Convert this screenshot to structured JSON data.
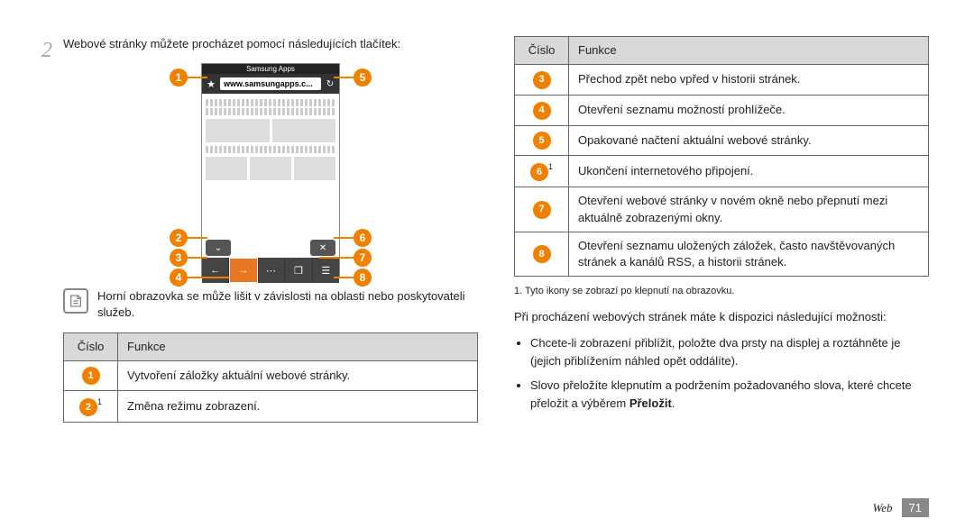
{
  "left": {
    "step_number": "2",
    "step_text": "Webové stránky můžete procházet pomocí následujících tlačítek:",
    "phone": {
      "title_bar": "Samsung Apps",
      "url": "www.samsungapps.c...",
      "markers_left": [
        "1",
        "2",
        "3",
        "4"
      ],
      "markers_right": [
        "5",
        "6",
        "7",
        "8"
      ]
    },
    "note": "Horní obrazovka se může lišit v závislosti na oblasti nebo poskytovateli služeb.",
    "table": {
      "headers": [
        "Číslo",
        "Funkce"
      ],
      "rows": [
        {
          "n": "1",
          "sup": "",
          "t": "Vytvoření záložky aktuální webové stránky."
        },
        {
          "n": "2",
          "sup": "1",
          "t": "Změna režimu zobrazení."
        }
      ]
    }
  },
  "right": {
    "table": {
      "headers": [
        "Číslo",
        "Funkce"
      ],
      "rows": [
        {
          "n": "3",
          "sup": "",
          "t": "Přechod zpět nebo vpřed v historii stránek."
        },
        {
          "n": "4",
          "sup": "",
          "t": "Otevření seznamu možností prohlížeče."
        },
        {
          "n": "5",
          "sup": "",
          "t": "Opakované načtení aktuální webové stránky."
        },
        {
          "n": "6",
          "sup": "1",
          "t": "Ukončení internetového připojení."
        },
        {
          "n": "7",
          "sup": "",
          "t": "Otevření webové stránky v novém okně nebo přepnutí mezi aktuálně zobrazenými okny."
        },
        {
          "n": "8",
          "sup": "",
          "t": "Otevření seznamu uložených záložek, často navštěvovaných stránek a kanálů RSS, a historii stránek."
        }
      ]
    },
    "footnote": "1. Tyto ikony se zobrazí po klepnutí na obrazovku.",
    "para": "Při procházení webových stránek máte k dispozici následující možnosti:",
    "bullets": [
      "Chcete-li zobrazení přiblížit, položte dva prsty na displej a roztáhněte je (jejich přiblížením náhled opět oddálíte).",
      "Slovo přeložíte klepnutím a podržením požadovaného slova, které chcete přeložit a výběrem <b>Přeložit</b>."
    ]
  },
  "footer": {
    "section": "Web",
    "page": "71"
  },
  "colors": {
    "accent": "#f08000",
    "header_bg": "#d9d9d9",
    "border": "#666"
  }
}
